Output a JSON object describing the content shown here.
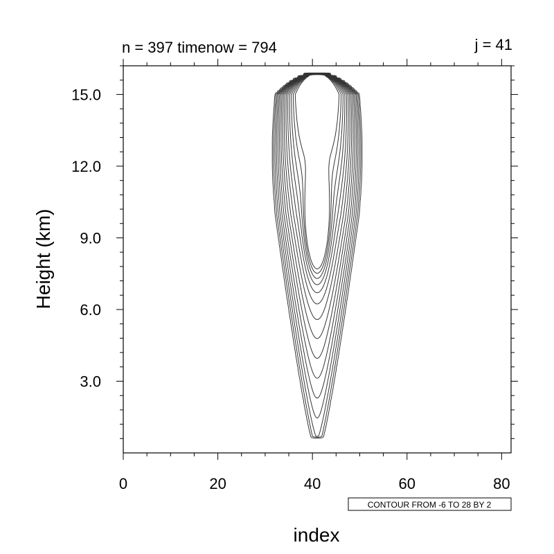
{
  "chart_data": {
    "type": "contour",
    "title_left": "n = 397 timenow = 794",
    "title_right": "j = 41",
    "xlabel": "index",
    "ylabel": "Height (km)",
    "xlim": [
      0,
      82
    ],
    "ylim": [
      0.0,
      16.2
    ],
    "x_ticks": [
      0,
      20,
      40,
      60,
      80
    ],
    "x_tick_labels": [
      "0",
      "20",
      "40",
      "60",
      "80"
    ],
    "y_ticks": [
      3.0,
      6.0,
      9.0,
      12.0,
      15.0
    ],
    "y_tick_labels": [
      "3.0",
      "6.0",
      "9.0",
      "12.0",
      "15.0"
    ],
    "contour_info": "CONTOUR FROM -6 TO 28 BY 2",
    "contour_min": -6,
    "contour_max": 28,
    "contour_interval": 2,
    "negative_line_style": "dashed",
    "positive_line_style": "solid",
    "grid": false,
    "colors": {
      "line": "#333333",
      "axis": "#000000",
      "background": "#ffffff"
    }
  }
}
